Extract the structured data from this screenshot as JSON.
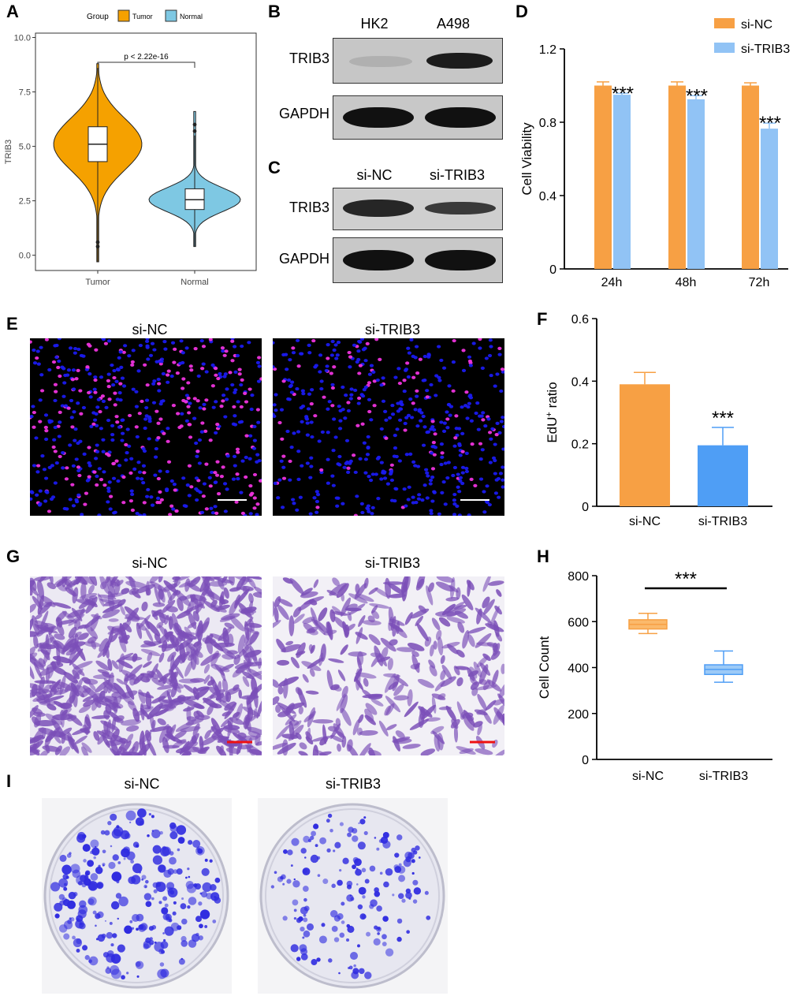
{
  "panel_letters": {
    "A": "A",
    "B": "B",
    "C": "C",
    "D": "D",
    "E": "E",
    "F": "F",
    "G": "G",
    "H": "H",
    "I": "I"
  },
  "colors": {
    "tumor": "#f5a100",
    "normal": "#7ec8e3",
    "si_nc": "#f7a044",
    "si_trib3": "#91c3f5",
    "si_trib3_f": "#4f9ef5",
    "edu_nucleus": "#1a1aee",
    "edu_positive": "#ee33dd",
    "crystal_violet": "#7b4fb8",
    "colony": "#2f2be0",
    "scale_white": "#ffffff",
    "scale_red": "#ee1111"
  },
  "blot_B": {
    "lanes": [
      "HK2",
      "A498"
    ],
    "rows": [
      "TRIB3",
      "GAPDH"
    ]
  },
  "blot_C": {
    "lanes": [
      "si-NC",
      "si-TRIB3"
    ],
    "rows": [
      "TRIB3",
      "GAPDH"
    ]
  },
  "panel_E": {
    "labels": [
      "si-NC",
      "si-TRIB3"
    ]
  },
  "panel_G": {
    "labels": [
      "si-NC",
      "si-TRIB3"
    ]
  },
  "panel_I": {
    "labels": [
      "si-NC",
      "si-TRIB3"
    ]
  },
  "chart_data": [
    {
      "id": "A",
      "type": "violin",
      "legend_title": "Group",
      "legend": [
        "Tumor",
        "Normal"
      ],
      "legend_position": "top",
      "categories": [
        "Tumor",
        "Normal"
      ],
      "ylabel": "TRIB3",
      "ylim": [
        -0.7,
        10.2
      ],
      "yticks": [
        "0.0",
        "2.5",
        "5.0",
        "7.5",
        "10.0"
      ],
      "annotation": "p < 2.22e-16",
      "box": [
        {
          "name": "Tumor",
          "min": -0.3,
          "q1": 4.3,
          "median": 5.1,
          "q3": 5.9,
          "max": 8.6,
          "outliers": [
            0.6,
            0.4
          ]
        },
        {
          "name": "Normal",
          "min": 0.4,
          "q1": 2.1,
          "median": 2.55,
          "q3": 3.05,
          "max": 5.5,
          "outliers": [
            6.0,
            5.7
          ]
        }
      ],
      "grid": false
    },
    {
      "id": "D",
      "type": "bar",
      "categories": [
        "24h",
        "48h",
        "72h"
      ],
      "series": [
        {
          "name": "si-NC",
          "values": [
            1.0,
            1.0,
            1.0
          ],
          "errors": [
            0.02,
            0.02,
            0.015
          ]
        },
        {
          "name": "si-TRIB3",
          "values": [
            0.95,
            0.925,
            0.765
          ],
          "errors": [
            0.008,
            0.02,
            0.03
          ]
        }
      ],
      "significance": [
        "***",
        "***",
        "***"
      ],
      "ylabel": "Cell Viability",
      "ylim": [
        0,
        1.2
      ],
      "yticks": [
        "0",
        "0.4",
        "0.8",
        "1.2"
      ],
      "legend_position": "top-right",
      "grid": false
    },
    {
      "id": "F",
      "type": "bar",
      "categories": [
        "si-NC",
        "si-TRIB3"
      ],
      "values": [
        0.39,
        0.195
      ],
      "errors": [
        0.038,
        0.057
      ],
      "significance": [
        "",
        "***"
      ],
      "ylabel_main": "EdU",
      "ylabel_sup": "+",
      "ylabel_rest": " ratio",
      "ylim": [
        0,
        0.6
      ],
      "yticks": [
        "0",
        "0.2",
        "0.4",
        "0.6"
      ],
      "grid": false
    },
    {
      "id": "H",
      "type": "box",
      "categories": [
        "si-NC",
        "si-TRIB3"
      ],
      "box": [
        {
          "name": "si-NC",
          "min": 548,
          "q1": 568,
          "median": 588,
          "q3": 608,
          "max": 636
        },
        {
          "name": "si-TRIB3",
          "min": 336,
          "q1": 370,
          "median": 392,
          "q3": 412,
          "max": 472
        }
      ],
      "significance": "***",
      "ylabel": "Cell Count",
      "ylim": [
        0,
        800
      ],
      "yticks": [
        "0",
        "200",
        "400",
        "600",
        "800"
      ],
      "grid": false
    }
  ]
}
